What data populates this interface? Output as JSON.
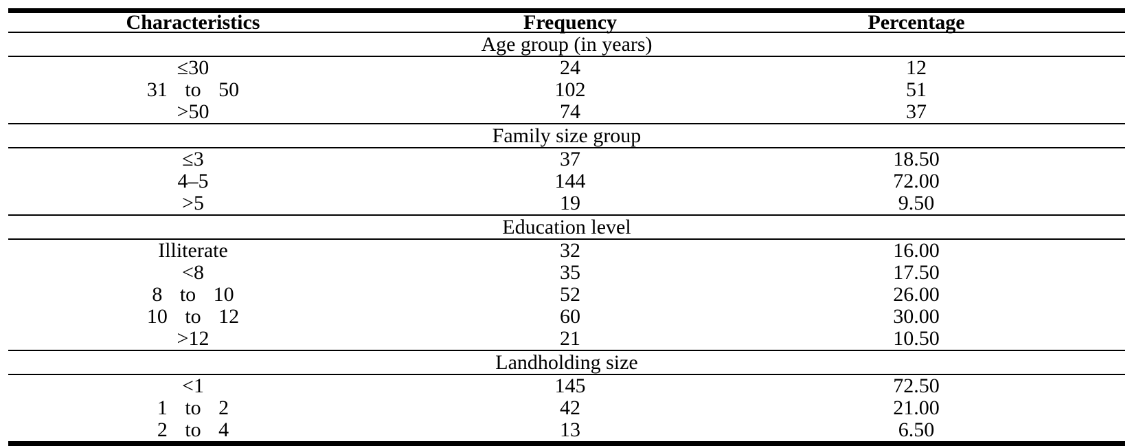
{
  "table": {
    "columns": {
      "characteristics": "Characteristics",
      "frequency": "Frequency",
      "percentage": "Percentage"
    },
    "sections": [
      {
        "title": "Age group (in years)",
        "rows": [
          [
            "≤30",
            "24",
            "12"
          ],
          [
            "31 to 50",
            "102",
            "51"
          ],
          [
            ">50",
            "74",
            "37"
          ]
        ]
      },
      {
        "title": "Family size group",
        "rows": [
          [
            "≤3",
            "37",
            "18.50"
          ],
          [
            "4–5",
            "144",
            "72.00"
          ],
          [
            ">5",
            "19",
            "9.50"
          ]
        ]
      },
      {
        "title": "Education level",
        "rows": [
          [
            "Illiterate",
            "32",
            "16.00"
          ],
          [
            "<8",
            "35",
            "17.50"
          ],
          [
            "8 to 10",
            "52",
            "26.00"
          ],
          [
            "10 to 12",
            "60",
            "30.00"
          ],
          [
            ">12",
            "21",
            "10.50"
          ]
        ]
      },
      {
        "title": "Landholding size",
        "rows": [
          [
            "<1",
            "145",
            "72.50"
          ],
          [
            "1 to 2",
            "42",
            "21.00"
          ],
          [
            "2 to 4",
            "13",
            "6.50"
          ]
        ]
      }
    ],
    "colors": {
      "text": "#000000",
      "rule": "#000000",
      "background": "#ffffff"
    }
  }
}
